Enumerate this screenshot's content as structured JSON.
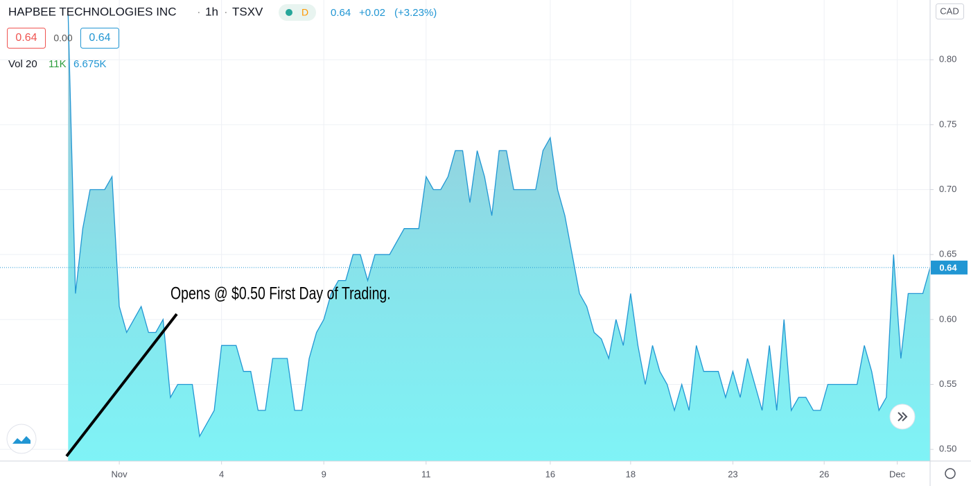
{
  "chart_data": {
    "type": "area",
    "title": "HAPBEE TECHNOLOGIES INC",
    "interval": "1h",
    "exchange": "TSXV",
    "badge": "D",
    "header": {
      "price": "0.64",
      "change": "+0.02",
      "change_pct": "(+3.23%)",
      "bid": "0.64",
      "spread": "0.00",
      "ask": "0.64",
      "vol_label": "Vol 20",
      "vol": "11K",
      "vol_ma": "6.675K"
    },
    "currency": "CAD",
    "annotation": "Opens @ $0.50 First Day of Trading.",
    "last_price": 0.64,
    "color": "#2196d3",
    "grid": true,
    "x": [
      0,
      1,
      2,
      3,
      5,
      6,
      7,
      8,
      10,
      11,
      12,
      13,
      14,
      15,
      17,
      18,
      20,
      21,
      23,
      24,
      25,
      26,
      27,
      28,
      30,
      31,
      32,
      33,
      34,
      35,
      36,
      37,
      38,
      39,
      40,
      41,
      42,
      44,
      46,
      48,
      49,
      50,
      51,
      52,
      53,
      54,
      55,
      56,
      57,
      58,
      59,
      60,
      61,
      64,
      65,
      66,
      67,
      68,
      70,
      71,
      72,
      73,
      74,
      75,
      76,
      77,
      78,
      79,
      80,
      81,
      82,
      83,
      84,
      85,
      86,
      87,
      89,
      90,
      91,
      92,
      93,
      94,
      95,
      96,
      97,
      98,
      99,
      100,
      101,
      102,
      103,
      104,
      108,
      109,
      110,
      111,
      112,
      113,
      114,
      115,
      117,
      118
    ],
    "values": [
      0.835,
      0.62,
      0.67,
      0.7,
      0.7,
      0.71,
      0.61,
      0.59,
      0.61,
      0.59,
      0.59,
      0.6,
      0.54,
      0.55,
      0.55,
      0.51,
      0.53,
      0.58,
      0.58,
      0.56,
      0.56,
      0.53,
      0.53,
      0.57,
      0.57,
      0.53,
      0.53,
      0.57,
      0.59,
      0.6,
      0.62,
      0.63,
      0.63,
      0.65,
      0.65,
      0.63,
      0.65,
      0.65,
      0.67,
      0.67,
      0.71,
      0.7,
      0.7,
      0.71,
      0.73,
      0.73,
      0.69,
      0.73,
      0.71,
      0.68,
      0.73,
      0.73,
      0.7,
      0.7,
      0.73,
      0.74,
      0.7,
      0.68,
      0.62,
      0.61,
      0.59,
      0.585,
      0.57,
      0.6,
      0.58,
      0.62,
      0.58,
      0.55,
      0.58,
      0.56,
      0.55,
      0.53,
      0.55,
      0.53,
      0.58,
      0.56,
      0.56,
      0.54,
      0.56,
      0.54,
      0.57,
      0.55,
      0.53,
      0.58,
      0.53,
      0.6,
      0.53,
      0.54,
      0.54,
      0.53,
      0.53,
      0.55,
      0.55,
      0.58,
      0.56,
      0.53,
      0.54,
      0.65,
      0.57,
      0.62,
      0.62,
      0.64
    ],
    "xlim": [
      -9.33,
      118
    ],
    "ylim": [
      0.491,
      0.846
    ],
    "xticks": [
      {
        "value": 7,
        "label": "Nov"
      },
      {
        "value": 21,
        "label": "4"
      },
      {
        "value": 35,
        "label": "9"
      },
      {
        "value": 49,
        "label": "11"
      },
      {
        "value": 66,
        "label": "16"
      },
      {
        "value": 77,
        "label": "18"
      },
      {
        "value": 91,
        "label": "23"
      },
      {
        "value": 103.5,
        "label": "26"
      },
      {
        "value": 113.5,
        "label": "Dec"
      }
    ],
    "yticks": [
      {
        "value": 0.5,
        "label": "0.50"
      },
      0.55,
      {
        "value": 0.6,
        "label": "0.60"
      },
      0.65,
      {
        "value": 0.7,
        "label": "0.70"
      },
      0.75,
      {
        "value": 0.8,
        "label": "0.80"
      }
    ]
  }
}
